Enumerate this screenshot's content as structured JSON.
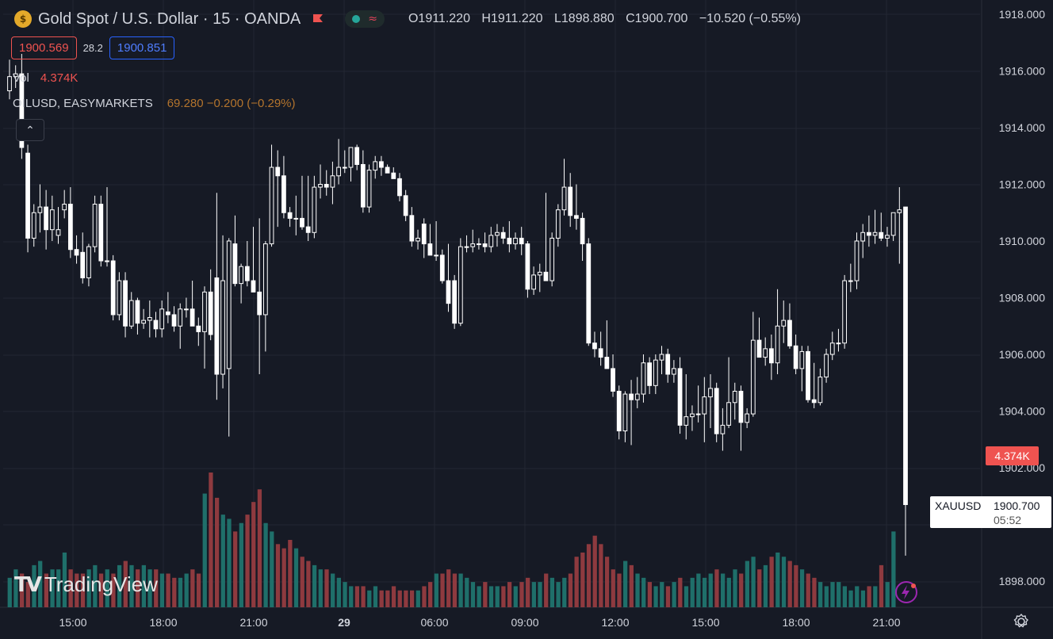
{
  "header": {
    "symbol_title": "Gold Spot / U.S. Dollar · 15 · OANDA",
    "ohlc": {
      "o_label": "O",
      "o": "1911.220",
      "h_label": "H",
      "h": "1911.220",
      "l_label": "L",
      "l": "1898.880",
      "c_label": "C",
      "c": "1900.700",
      "change": "−10.520 (−0.55%)"
    },
    "sell_price": "1900.569",
    "spread": "28.2",
    "buy_price": "1900.851",
    "volume_label": "Vol",
    "volume_value": "4.374K",
    "compare_symbol": "OILUSD, EASYMARKETS",
    "compare_value": "69.280 −0.200 (−0.29%)"
  },
  "brand": {
    "logo_text": "TradingView"
  },
  "colors": {
    "up": "#ffffff",
    "down": "#ffffff",
    "vol_up": "#1f6f6a",
    "vol_down": "#8e3a3f",
    "bg": "#161a25",
    "grid": "#232732",
    "accent_red": "#ef5350"
  },
  "axis": {
    "price_ticks": [
      "1918.000",
      "1916.000",
      "1914.000",
      "1912.000",
      "1910.000",
      "1908.000",
      "1906.000",
      "1904.000",
      "1902.000",
      "1898.000"
    ],
    "time_ticks": [
      "15:00",
      "18:00",
      "21:00",
      "29",
      "06:00",
      "09:00",
      "12:00",
      "15:00",
      "18:00",
      "21:00"
    ]
  },
  "price_label": {
    "symbol": "XAUUSD",
    "price": "1900.700",
    "countdown": "05:52"
  },
  "volume_label_tag": "4.374K",
  "chart_data": {
    "type": "candlestick",
    "symbol": "XAUUSD",
    "interval": "15",
    "ylim": [
      1897.5,
      1918.2
    ],
    "candles": [
      {
        "o": 1915.3,
        "h": 1916.4,
        "l": 1915.0,
        "c": 1915.8
      },
      {
        "o": 1915.8,
        "h": 1916.2,
        "l": 1915.4,
        "c": 1915.9
      },
      {
        "o": 1915.9,
        "h": 1916.6,
        "l": 1912.9,
        "c": 1913.3
      },
      {
        "o": 1913.1,
        "h": 1913.4,
        "l": 1909.6,
        "c": 1910.1
      },
      {
        "o": 1910.1,
        "h": 1911.3,
        "l": 1909.8,
        "c": 1911.0
      },
      {
        "o": 1911.0,
        "h": 1912.0,
        "l": 1910.3,
        "c": 1911.2
      },
      {
        "o": 1911.2,
        "h": 1911.8,
        "l": 1909.7,
        "c": 1910.4
      },
      {
        "o": 1910.4,
        "h": 1911.6,
        "l": 1910.0,
        "c": 1911.1
      },
      {
        "o": 1910.2,
        "h": 1911.2,
        "l": 1909.9,
        "c": 1910.4
      },
      {
        "o": 1911.1,
        "h": 1911.8,
        "l": 1910.8,
        "c": 1911.3
      },
      {
        "o": 1911.3,
        "h": 1911.9,
        "l": 1909.4,
        "c": 1909.7
      },
      {
        "o": 1909.7,
        "h": 1910.2,
        "l": 1909.2,
        "c": 1909.5
      },
      {
        "o": 1909.6,
        "h": 1910.3,
        "l": 1908.5,
        "c": 1908.7
      },
      {
        "o": 1908.7,
        "h": 1909.9,
        "l": 1908.4,
        "c": 1909.8
      },
      {
        "o": 1909.8,
        "h": 1911.6,
        "l": 1909.6,
        "c": 1911.3
      },
      {
        "o": 1911.3,
        "h": 1911.6,
        "l": 1909.1,
        "c": 1909.3
      },
      {
        "o": 1909.3,
        "h": 1911.9,
        "l": 1909.1,
        "c": 1909.3
      },
      {
        "o": 1909.3,
        "h": 1909.5,
        "l": 1907.2,
        "c": 1907.4
      },
      {
        "o": 1907.4,
        "h": 1908.9,
        "l": 1907.2,
        "c": 1908.6
      },
      {
        "o": 1908.6,
        "h": 1908.9,
        "l": 1906.6,
        "c": 1907.0
      },
      {
        "o": 1907.0,
        "h": 1908.2,
        "l": 1906.9,
        "c": 1907.9
      },
      {
        "o": 1907.9,
        "h": 1908.0,
        "l": 1906.7,
        "c": 1907.1
      },
      {
        "o": 1907.1,
        "h": 1907.6,
        "l": 1906.9,
        "c": 1907.2
      },
      {
        "o": 1907.2,
        "h": 1907.9,
        "l": 1906.6,
        "c": 1907.3
      },
      {
        "o": 1907.2,
        "h": 1907.5,
        "l": 1906.6,
        "c": 1906.9
      },
      {
        "o": 1906.9,
        "h": 1907.9,
        "l": 1906.6,
        "c": 1907.6
      },
      {
        "o": 1907.5,
        "h": 1908.2,
        "l": 1907.1,
        "c": 1907.4
      },
      {
        "o": 1907.4,
        "h": 1907.7,
        "l": 1906.8,
        "c": 1907.0
      },
      {
        "o": 1907.0,
        "h": 1907.8,
        "l": 1906.2,
        "c": 1907.6
      },
      {
        "o": 1907.6,
        "h": 1908.0,
        "l": 1907.3,
        "c": 1907.6
      },
      {
        "o": 1907.6,
        "h": 1908.6,
        "l": 1907.2,
        "c": 1907.0
      },
      {
        "o": 1907.0,
        "h": 1907.3,
        "l": 1906.3,
        "c": 1906.8
      },
      {
        "o": 1906.8,
        "h": 1908.4,
        "l": 1905.5,
        "c": 1908.2
      },
      {
        "o": 1908.2,
        "h": 1909.0,
        "l": 1906.5,
        "c": 1906.7
      },
      {
        "o": 1908.7,
        "h": 1911.7,
        "l": 1904.4,
        "c": 1905.3
      },
      {
        "o": 1905.3,
        "h": 1910.2,
        "l": 1904.8,
        "c": 1908.6
      },
      {
        "o": 1905.5,
        "h": 1910.1,
        "l": 1903.1,
        "c": 1910.0
      },
      {
        "o": 1909.9,
        "h": 1910.9,
        "l": 1908.4,
        "c": 1908.5
      },
      {
        "o": 1908.5,
        "h": 1909.2,
        "l": 1907.8,
        "c": 1909.1
      },
      {
        "o": 1909.1,
        "h": 1910.0,
        "l": 1908.4,
        "c": 1908.6
      },
      {
        "o": 1908.6,
        "h": 1910.5,
        "l": 1908.2,
        "c": 1908.2
      },
      {
        "o": 1908.2,
        "h": 1910.8,
        "l": 1905.3,
        "c": 1907.4
      },
      {
        "o": 1907.4,
        "h": 1910.0,
        "l": 1906.1,
        "c": 1909.9
      },
      {
        "o": 1909.9,
        "h": 1913.4,
        "l": 1909.8,
        "c": 1912.6
      },
      {
        "o": 1912.6,
        "h": 1913.2,
        "l": 1910.5,
        "c": 1912.3
      },
      {
        "o": 1912.3,
        "h": 1913.0,
        "l": 1910.8,
        "c": 1911.0
      },
      {
        "o": 1911.0,
        "h": 1911.2,
        "l": 1910.5,
        "c": 1910.8
      },
      {
        "o": 1910.8,
        "h": 1911.6,
        "l": 1910.2,
        "c": 1910.8
      },
      {
        "o": 1910.8,
        "h": 1912.3,
        "l": 1910.4,
        "c": 1910.5
      },
      {
        "o": 1910.5,
        "h": 1912.3,
        "l": 1910.0,
        "c": 1910.3
      },
      {
        "o": 1910.3,
        "h": 1912.3,
        "l": 1910.1,
        "c": 1911.9
      },
      {
        "o": 1911.9,
        "h": 1912.7,
        "l": 1911.5,
        "c": 1912.0
      },
      {
        "o": 1912.0,
        "h": 1912.5,
        "l": 1911.6,
        "c": 1911.9
      },
      {
        "o": 1911.9,
        "h": 1912.8,
        "l": 1911.3,
        "c": 1912.3
      },
      {
        "o": 1912.3,
        "h": 1913.6,
        "l": 1912.0,
        "c": 1912.6
      },
      {
        "o": 1912.6,
        "h": 1913.2,
        "l": 1912.4,
        "c": 1912.6
      },
      {
        "o": 1912.6,
        "h": 1913.3,
        "l": 1912.1,
        "c": 1913.3
      },
      {
        "o": 1913.3,
        "h": 1913.4,
        "l": 1912.5,
        "c": 1912.7
      },
      {
        "o": 1912.7,
        "h": 1913.2,
        "l": 1911.0,
        "c": 1911.2
      },
      {
        "o": 1911.2,
        "h": 1912.7,
        "l": 1911.0,
        "c": 1912.5
      },
      {
        "o": 1912.5,
        "h": 1913.0,
        "l": 1912.2,
        "c": 1912.8
      },
      {
        "o": 1912.8,
        "h": 1913.0,
        "l": 1912.3,
        "c": 1912.6
      },
      {
        "o": 1912.6,
        "h": 1912.7,
        "l": 1912.4,
        "c": 1912.4
      },
      {
        "o": 1912.4,
        "h": 1912.6,
        "l": 1912.2,
        "c": 1912.2
      },
      {
        "o": 1912.2,
        "h": 1912.4,
        "l": 1911.4,
        "c": 1911.6
      },
      {
        "o": 1911.6,
        "h": 1911.8,
        "l": 1910.7,
        "c": 1910.9
      },
      {
        "o": 1910.9,
        "h": 1911.2,
        "l": 1909.8,
        "c": 1910.0
      },
      {
        "o": 1910.0,
        "h": 1910.4,
        "l": 1909.7,
        "c": 1910.1
      },
      {
        "o": 1910.6,
        "h": 1910.8,
        "l": 1909.4,
        "c": 1909.9
      },
      {
        "o": 1909.9,
        "h": 1910.6,
        "l": 1909.5,
        "c": 1909.5
      },
      {
        "o": 1909.5,
        "h": 1910.7,
        "l": 1909.3,
        "c": 1909.5
      },
      {
        "o": 1909.5,
        "h": 1909.7,
        "l": 1908.5,
        "c": 1908.6
      },
      {
        "o": 1908.6,
        "h": 1909.9,
        "l": 1907.5,
        "c": 1907.8
      },
      {
        "o": 1908.6,
        "h": 1908.8,
        "l": 1906.9,
        "c": 1907.1
      },
      {
        "o": 1907.1,
        "h": 1910.1,
        "l": 1907.0,
        "c": 1909.8
      },
      {
        "o": 1909.8,
        "h": 1910.2,
        "l": 1909.6,
        "c": 1909.8
      },
      {
        "o": 1909.8,
        "h": 1910.4,
        "l": 1909.6,
        "c": 1909.9
      },
      {
        "o": 1909.9,
        "h": 1910.1,
        "l": 1909.7,
        "c": 1909.9
      },
      {
        "o": 1909.9,
        "h": 1910.3,
        "l": 1909.6,
        "c": 1909.8
      },
      {
        "o": 1909.8,
        "h": 1910.5,
        "l": 1909.6,
        "c": 1910.2
      },
      {
        "o": 1910.2,
        "h": 1910.6,
        "l": 1909.8,
        "c": 1910.3
      },
      {
        "o": 1910.3,
        "h": 1910.5,
        "l": 1909.9,
        "c": 1910.1
      },
      {
        "o": 1910.1,
        "h": 1910.7,
        "l": 1909.6,
        "c": 1909.9
      },
      {
        "o": 1909.9,
        "h": 1910.3,
        "l": 1909.7,
        "c": 1910.1
      },
      {
        "o": 1910.1,
        "h": 1910.5,
        "l": 1909.5,
        "c": 1909.9
      },
      {
        "o": 1909.9,
        "h": 1910.0,
        "l": 1908.0,
        "c": 1908.3
      },
      {
        "o": 1908.3,
        "h": 1909.1,
        "l": 1908.1,
        "c": 1908.8
      },
      {
        "o": 1908.8,
        "h": 1909.2,
        "l": 1908.2,
        "c": 1908.9
      },
      {
        "o": 1908.9,
        "h": 1911.7,
        "l": 1908.7,
        "c": 1908.6
      },
      {
        "o": 1908.6,
        "h": 1910.3,
        "l": 1908.4,
        "c": 1910.1
      },
      {
        "o": 1910.1,
        "h": 1911.3,
        "l": 1909.8,
        "c": 1911.1
      },
      {
        "o": 1911.1,
        "h": 1912.9,
        "l": 1910.9,
        "c": 1911.9
      },
      {
        "o": 1911.9,
        "h": 1912.4,
        "l": 1910.5,
        "c": 1910.9
      },
      {
        "o": 1910.9,
        "h": 1912.0,
        "l": 1910.4,
        "c": 1910.8
      },
      {
        "o": 1910.8,
        "h": 1911.0,
        "l": 1909.3,
        "c": 1909.9
      },
      {
        "o": 1909.9,
        "h": 1910.1,
        "l": 1906.3,
        "c": 1906.4
      },
      {
        "o": 1906.4,
        "h": 1906.8,
        "l": 1905.9,
        "c": 1906.2
      },
      {
        "o": 1906.2,
        "h": 1906.8,
        "l": 1905.6,
        "c": 1905.9
      },
      {
        "o": 1905.9,
        "h": 1907.2,
        "l": 1905.5,
        "c": 1905.5
      },
      {
        "o": 1905.5,
        "h": 1906.0,
        "l": 1904.5,
        "c": 1904.7
      },
      {
        "o": 1904.7,
        "h": 1904.9,
        "l": 1903.0,
        "c": 1903.3
      },
      {
        "o": 1903.3,
        "h": 1904.7,
        "l": 1902.9,
        "c": 1904.6
      },
      {
        "o": 1904.6,
        "h": 1905.1,
        "l": 1902.8,
        "c": 1904.4
      },
      {
        "o": 1904.4,
        "h": 1905.2,
        "l": 1904.1,
        "c": 1904.6
      },
      {
        "o": 1904.6,
        "h": 1906.0,
        "l": 1904.3,
        "c": 1905.7
      },
      {
        "o": 1905.7,
        "h": 1905.9,
        "l": 1904.6,
        "c": 1904.9
      },
      {
        "o": 1904.9,
        "h": 1906.0,
        "l": 1904.6,
        "c": 1905.8
      },
      {
        "o": 1905.8,
        "h": 1906.3,
        "l": 1905.3,
        "c": 1906.0
      },
      {
        "o": 1906.0,
        "h": 1906.2,
        "l": 1905.0,
        "c": 1905.3
      },
      {
        "o": 1905.3,
        "h": 1905.8,
        "l": 1905.0,
        "c": 1905.5
      },
      {
        "o": 1905.5,
        "h": 1905.9,
        "l": 1903.2,
        "c": 1903.5
      },
      {
        "o": 1903.5,
        "h": 1905.3,
        "l": 1903.0,
        "c": 1903.8
      },
      {
        "o": 1903.8,
        "h": 1904.2,
        "l": 1903.3,
        "c": 1903.9
      },
      {
        "o": 1903.9,
        "h": 1904.9,
        "l": 1903.6,
        "c": 1903.9
      },
      {
        "o": 1903.9,
        "h": 1905.2,
        "l": 1902.9,
        "c": 1904.5
      },
      {
        "o": 1904.5,
        "h": 1905.3,
        "l": 1903.4,
        "c": 1904.8
      },
      {
        "o": 1904.8,
        "h": 1905.0,
        "l": 1902.9,
        "c": 1903.2
      },
      {
        "o": 1903.2,
        "h": 1904.1,
        "l": 1902.6,
        "c": 1903.5
      },
      {
        "o": 1903.5,
        "h": 1905.9,
        "l": 1903.4,
        "c": 1904.3
      },
      {
        "o": 1904.3,
        "h": 1905.0,
        "l": 1903.7,
        "c": 1904.7
      },
      {
        "o": 1904.7,
        "h": 1904.9,
        "l": 1902.6,
        "c": 1903.6
      },
      {
        "o": 1903.6,
        "h": 1904.1,
        "l": 1903.4,
        "c": 1903.9
      },
      {
        "o": 1903.9,
        "h": 1907.5,
        "l": 1903.8,
        "c": 1906.5
      },
      {
        "o": 1906.5,
        "h": 1907.3,
        "l": 1905.9,
        "c": 1905.9
      },
      {
        "o": 1905.9,
        "h": 1906.6,
        "l": 1905.6,
        "c": 1906.2
      },
      {
        "o": 1906.2,
        "h": 1906.7,
        "l": 1905.1,
        "c": 1905.7
      },
      {
        "o": 1905.7,
        "h": 1908.3,
        "l": 1905.3,
        "c": 1907.0
      },
      {
        "o": 1907.0,
        "h": 1907.9,
        "l": 1906.4,
        "c": 1907.2
      },
      {
        "o": 1907.2,
        "h": 1907.8,
        "l": 1906.2,
        "c": 1906.3
      },
      {
        "o": 1906.3,
        "h": 1906.7,
        "l": 1905.3,
        "c": 1905.5
      },
      {
        "o": 1905.5,
        "h": 1906.3,
        "l": 1904.7,
        "c": 1906.1
      },
      {
        "o": 1906.1,
        "h": 1906.3,
        "l": 1904.3,
        "c": 1904.4
      },
      {
        "o": 1904.4,
        "h": 1905.7,
        "l": 1904.1,
        "c": 1904.3
      },
      {
        "o": 1904.3,
        "h": 1905.5,
        "l": 1904.2,
        "c": 1905.2
      },
      {
        "o": 1905.2,
        "h": 1906.2,
        "l": 1905.0,
        "c": 1906.0
      },
      {
        "o": 1906.0,
        "h": 1906.8,
        "l": 1905.8,
        "c": 1906.4
      },
      {
        "o": 1906.4,
        "h": 1906.9,
        "l": 1906.1,
        "c": 1906.4
      },
      {
        "o": 1906.4,
        "h": 1908.8,
        "l": 1906.2,
        "c": 1908.6
      },
      {
        "o": 1908.6,
        "h": 1909.2,
        "l": 1908.2,
        "c": 1908.6
      },
      {
        "o": 1908.6,
        "h": 1910.3,
        "l": 1908.3,
        "c": 1910.0
      },
      {
        "o": 1910.0,
        "h": 1910.6,
        "l": 1909.4,
        "c": 1910.3
      },
      {
        "o": 1910.3,
        "h": 1910.9,
        "l": 1909.8,
        "c": 1910.2
      },
      {
        "o": 1910.2,
        "h": 1911.1,
        "l": 1909.9,
        "c": 1910.3
      },
      {
        "o": 1910.3,
        "h": 1911.0,
        "l": 1910.0,
        "c": 1910.1
      },
      {
        "o": 1910.1,
        "h": 1910.5,
        "l": 1909.8,
        "c": 1910.2
      },
      {
        "o": 1910.2,
        "h": 1911.0,
        "l": 1910.0,
        "c": 1911.0
      },
      {
        "o": 1911.0,
        "h": 1911.9,
        "l": 1909.2,
        "c": 1911.1
      },
      {
        "o": 1911.2,
        "h": 1911.2,
        "l": 1898.9,
        "c": 1900.7
      }
    ],
    "volumes": [
      7,
      9,
      8,
      6,
      10,
      11,
      8,
      9,
      9,
      13,
      9,
      8,
      8,
      9,
      10,
      8,
      9,
      8,
      10,
      11,
      10,
      9,
      10,
      9,
      9,
      8,
      8,
      7,
      7,
      8,
      9,
      8,
      27,
      32,
      26,
      22,
      21,
      18,
      20,
      22,
      25,
      28,
      20,
      18,
      15,
      14,
      16,
      14,
      12,
      11,
      10,
      9,
      9,
      8,
      7,
      6,
      5,
      5,
      5,
      4,
      5,
      4,
      4,
      5,
      4,
      4,
      4,
      4,
      5,
      6,
      8,
      8,
      9,
      8,
      8,
      7,
      6,
      5,
      6,
      5,
      5,
      5,
      6,
      5,
      6,
      7,
      6,
      6,
      8,
      7,
      6,
      7,
      8,
      12,
      13,
      15,
      17,
      15,
      12,
      9,
      8,
      11,
      10,
      8,
      7,
      6,
      5,
      6,
      5,
      6,
      7,
      5,
      7,
      8,
      7,
      8,
      9,
      8,
      7,
      9,
      8,
      11,
      12,
      9,
      10,
      12,
      13,
      12,
      11,
      10,
      9,
      8,
      7,
      6,
      5,
      6,
      6,
      5,
      4,
      5,
      4,
      5,
      5,
      10,
      6,
      18
    ]
  }
}
